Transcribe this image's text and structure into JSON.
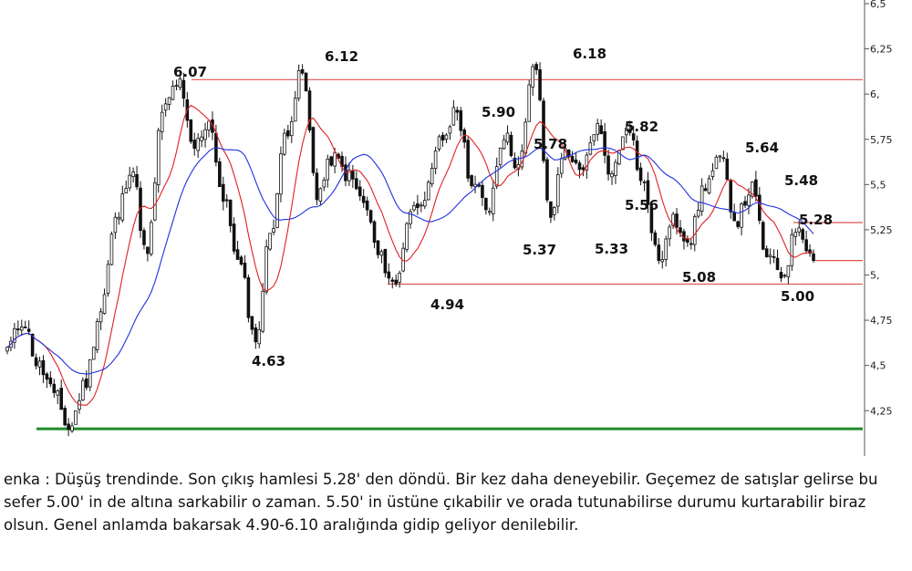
{
  "chart_data": {
    "type": "candlestick",
    "title": "",
    "xlabel": "",
    "ylabel": "",
    "ylim": [
      4.1,
      6.5
    ],
    "y_ticks": [
      "4,25",
      "4,5",
      "4,75",
      "5,",
      "5,25",
      "5,5",
      "5,75",
      "6,",
      "6,25",
      "6,5"
    ],
    "y_tick_values": [
      4.25,
      4.5,
      4.75,
      5.0,
      5.25,
      5.5,
      5.75,
      6.0,
      6.25,
      6.5
    ],
    "grid": false,
    "price_path": [
      4.6,
      4.75,
      4.5,
      4.35,
      4.15,
      4.4,
      4.8,
      5.3,
      5.6,
      5.1,
      5.9,
      6.07,
      5.7,
      5.85,
      5.4,
      5.05,
      4.63,
      5.25,
      5.8,
      6.12,
      5.45,
      5.65,
      5.55,
      5.4,
      5.1,
      4.94,
      5.35,
      5.45,
      5.75,
      5.9,
      5.5,
      5.37,
      5.78,
      5.6,
      6.18,
      5.33,
      5.7,
      5.55,
      5.82,
      5.56,
      5.85,
      5.5,
      5.08,
      5.3,
      5.2,
      5.5,
      5.64,
      5.3,
      5.48,
      5.1,
      5.0,
      5.28,
      5.08
    ],
    "moving_averages": [
      {
        "color": "#e02020",
        "period": 10
      },
      {
        "color": "#2030e0",
        "period": 25
      }
    ],
    "annotations": [
      {
        "label": "6.07",
        "price": 6.07
      },
      {
        "label": "6.12",
        "price": 6.12
      },
      {
        "label": "6.18",
        "price": 6.18
      },
      {
        "label": "5.90",
        "price": 5.9
      },
      {
        "label": "5.78",
        "price": 5.78
      },
      {
        "label": "5.82",
        "price": 5.82
      },
      {
        "label": "5.64",
        "price": 5.64
      },
      {
        "label": "5.48",
        "price": 5.48
      },
      {
        "label": "5.28",
        "price": 5.28
      },
      {
        "label": "5.56",
        "price": 5.56
      },
      {
        "label": "5.37",
        "price": 5.37
      },
      {
        "label": "5.33",
        "price": 5.33
      },
      {
        "label": "5.08",
        "price": 5.08
      },
      {
        "label": "5.00",
        "price": 5.0
      },
      {
        "label": "4.94",
        "price": 4.94
      },
      {
        "label": "4.63",
        "price": 4.63
      }
    ],
    "levels": [
      {
        "price": 6.08,
        "color": "#e05050"
      },
      {
        "price": 5.29,
        "color": "#e05050"
      },
      {
        "price": 5.08,
        "color": "#e05050"
      },
      {
        "price": 4.95,
        "color": "#e05050"
      },
      {
        "price": 4.15,
        "color": "#1f8a2a"
      }
    ]
  },
  "commentary": "enka : Düşüş trendinde. Son çıkış hamlesi 5.28' den döndü. Bir kez daha deneyebilir. Geçemez de satışlar gelirse bu sefer 5.00' in de altına sarkabilir o zaman. 5.50' in üstüne çıkabilir ve orada tutunabilirse durumu kurtarabilir biraz olsun. Genel anlamda bakarsak 4.90-6.10 aralığında gidip geliyor denilebilir."
}
